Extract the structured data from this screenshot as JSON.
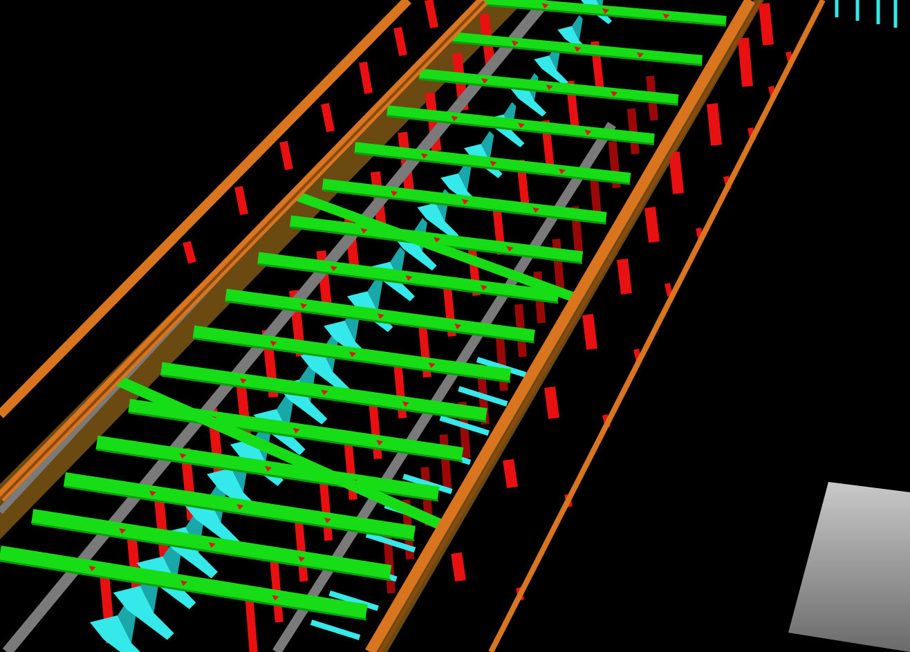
{
  "viewport": {
    "background": "#000000",
    "view": "3d-perspective",
    "render_mode": "solid-color-coded"
  },
  "colors": {
    "rail": "#d9751e",
    "rail_shade": "#8a4a10",
    "deck": "#6b4a12",
    "girder": "#7a7a7a",
    "crossbeam": "#16dd16",
    "crossbeam_edge": "#0aa00a",
    "post": "#e81010",
    "post_dark": "#9a0808",
    "bracket": "#35e8ea",
    "bracket_dark": "#1aa7aa",
    "block": "#b8b8b8"
  },
  "legend": []
}
